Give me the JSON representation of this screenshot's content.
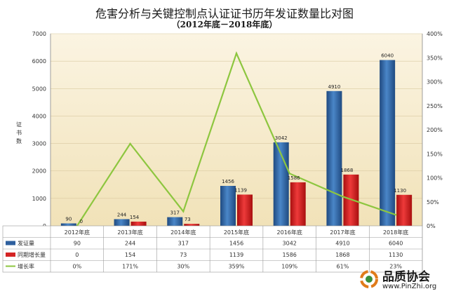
{
  "chart_data": {
    "type": "bar",
    "title": "危害分析与关键控制点认证证书历年发证数量比对图",
    "subtitle": "（2012年底－2018年底）",
    "ylabel": "证书数",
    "categories": [
      "2012年底",
      "2013年底",
      "2014年底",
      "2015年底",
      "2016年底",
      "2017年底",
      "2018年底"
    ],
    "ylim": [
      0,
      7000
    ],
    "yticks": [
      "0",
      "1000",
      "2000",
      "3000",
      "4000",
      "5000",
      "6000",
      "7000"
    ],
    "y2lim": [
      0,
      400
    ],
    "y2ticks": [
      "0%",
      "50%",
      "100%",
      "150%",
      "200%",
      "250%",
      "300%",
      "350%",
      "400%"
    ],
    "series": [
      {
        "name": "发证量",
        "type": "bar",
        "axis": "left",
        "color": "#2e5f9e",
        "values": [
          90,
          244,
          317,
          1456,
          3042,
          4910,
          6040
        ],
        "labels": [
          "90",
          "244",
          "317",
          "1456",
          "3042",
          "4910",
          "6040"
        ]
      },
      {
        "name": "同期增长量",
        "type": "bar",
        "axis": "left",
        "color": "#d42424",
        "values": [
          0,
          154,
          73,
          1139,
          1586,
          1868,
          1130
        ],
        "labels": [
          "0",
          "154",
          "73",
          "1139",
          "1586",
          "1868",
          "1130"
        ]
      },
      {
        "name": "增长率",
        "type": "line",
        "axis": "right",
        "color": "#8dc63f",
        "values": [
          0,
          171,
          30,
          359,
          109,
          61,
          23
        ],
        "labels": [
          "0%",
          "171%",
          "30%",
          "359%",
          "109%",
          "61%",
          "23%"
        ]
      }
    ],
    "grid": true,
    "legend": "table-below"
  },
  "logo": {
    "text": "品质协会",
    "url": "www.PinZhi.org"
  },
  "colors": {
    "plot_bg_top": "#fbf4e2",
    "plot_bg_bottom": "#f1e2b8"
  }
}
